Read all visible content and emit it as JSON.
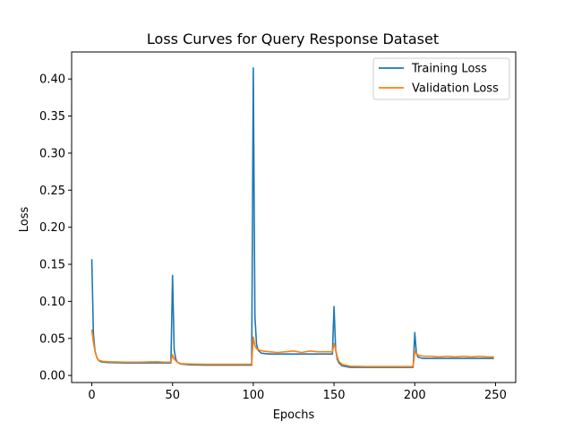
{
  "chart_data": {
    "type": "line",
    "title": "Loss Curves for Query Response Dataset",
    "xlabel": "Epochs",
    "ylabel": "Loss",
    "xlim": [
      -12.5,
      262.5
    ],
    "ylim": [
      -0.0095,
      0.4365
    ],
    "xticks": [
      0,
      50,
      100,
      150,
      200,
      250
    ],
    "yticks": [
      0.0,
      0.05,
      0.1,
      0.15,
      0.2,
      0.25,
      0.3,
      0.35,
      0.4
    ],
    "ytick_labels": [
      "0.00",
      "0.05",
      "0.10",
      "0.15",
      "0.20",
      "0.25",
      "0.30",
      "0.35",
      "0.40"
    ],
    "xtick_labels": [
      "0",
      "50",
      "100",
      "150",
      "200",
      "250"
    ],
    "grid": false,
    "legend_position": "top-right",
    "series": [
      {
        "name": "Training Loss",
        "color": "#1f77b4",
        "points": [
          [
            0,
            0.157
          ],
          [
            1,
            0.055
          ],
          [
            2,
            0.033
          ],
          [
            3,
            0.025
          ],
          [
            4,
            0.021
          ],
          [
            5,
            0.019
          ],
          [
            7,
            0.018
          ],
          [
            10,
            0.0175
          ],
          [
            20,
            0.017
          ],
          [
            30,
            0.017
          ],
          [
            40,
            0.017
          ],
          [
            49,
            0.017
          ],
          [
            50,
            0.135
          ],
          [
            51,
            0.035
          ],
          [
            52,
            0.022
          ],
          [
            53,
            0.018
          ],
          [
            55,
            0.0155
          ],
          [
            60,
            0.0145
          ],
          [
            70,
            0.014
          ],
          [
            80,
            0.014
          ],
          [
            90,
            0.014
          ],
          [
            99,
            0.014
          ],
          [
            100,
            0.415
          ],
          [
            101,
            0.08
          ],
          [
            102,
            0.042
          ],
          [
            103,
            0.034
          ],
          [
            105,
            0.03
          ],
          [
            110,
            0.029
          ],
          [
            120,
            0.029
          ],
          [
            130,
            0.029
          ],
          [
            140,
            0.029
          ],
          [
            149,
            0.029
          ],
          [
            150,
            0.093
          ],
          [
            151,
            0.035
          ],
          [
            152,
            0.022
          ],
          [
            153,
            0.017
          ],
          [
            155,
            0.013
          ],
          [
            160,
            0.011
          ],
          [
            170,
            0.011
          ],
          [
            180,
            0.011
          ],
          [
            190,
            0.011
          ],
          [
            199,
            0.011
          ],
          [
            200,
            0.058
          ],
          [
            201,
            0.03
          ],
          [
            202,
            0.025
          ],
          [
            203,
            0.024
          ],
          [
            205,
            0.023
          ],
          [
            210,
            0.023
          ],
          [
            220,
            0.023
          ],
          [
            230,
            0.023
          ],
          [
            240,
            0.023
          ],
          [
            249,
            0.023
          ]
        ]
      },
      {
        "name": "Validation Loss",
        "color": "#ff7f0e",
        "points": [
          [
            0,
            0.062
          ],
          [
            1,
            0.045
          ],
          [
            2,
            0.032
          ],
          [
            3,
            0.025
          ],
          [
            4,
            0.021
          ],
          [
            5,
            0.02
          ],
          [
            7,
            0.019
          ],
          [
            10,
            0.0185
          ],
          [
            20,
            0.018
          ],
          [
            30,
            0.018
          ],
          [
            40,
            0.0185
          ],
          [
            45,
            0.018
          ],
          [
            49,
            0.018
          ],
          [
            50,
            0.028
          ],
          [
            51,
            0.022
          ],
          [
            53,
            0.018
          ],
          [
            55,
            0.016
          ],
          [
            60,
            0.0155
          ],
          [
            70,
            0.015
          ],
          [
            80,
            0.015
          ],
          [
            90,
            0.015
          ],
          [
            99,
            0.015
          ],
          [
            100,
            0.052
          ],
          [
            101,
            0.04
          ],
          [
            102,
            0.036
          ],
          [
            104,
            0.034
          ],
          [
            106,
            0.033
          ],
          [
            110,
            0.032
          ],
          [
            115,
            0.031
          ],
          [
            120,
            0.032
          ],
          [
            125,
            0.033
          ],
          [
            130,
            0.031
          ],
          [
            135,
            0.033
          ],
          [
            140,
            0.032
          ],
          [
            145,
            0.032
          ],
          [
            149,
            0.032
          ],
          [
            150,
            0.043
          ],
          [
            151,
            0.035
          ],
          [
            152,
            0.025
          ],
          [
            153,
            0.019
          ],
          [
            155,
            0.015
          ],
          [
            160,
            0.0125
          ],
          [
            170,
            0.012
          ],
          [
            180,
            0.012
          ],
          [
            190,
            0.012
          ],
          [
            199,
            0.012
          ],
          [
            200,
            0.033
          ],
          [
            201,
            0.029
          ],
          [
            203,
            0.027
          ],
          [
            205,
            0.026
          ],
          [
            210,
            0.026
          ],
          [
            215,
            0.025
          ],
          [
            220,
            0.026
          ],
          [
            225,
            0.025
          ],
          [
            230,
            0.026
          ],
          [
            235,
            0.025
          ],
          [
            240,
            0.026
          ],
          [
            245,
            0.025
          ],
          [
            249,
            0.025
          ]
        ]
      }
    ]
  }
}
